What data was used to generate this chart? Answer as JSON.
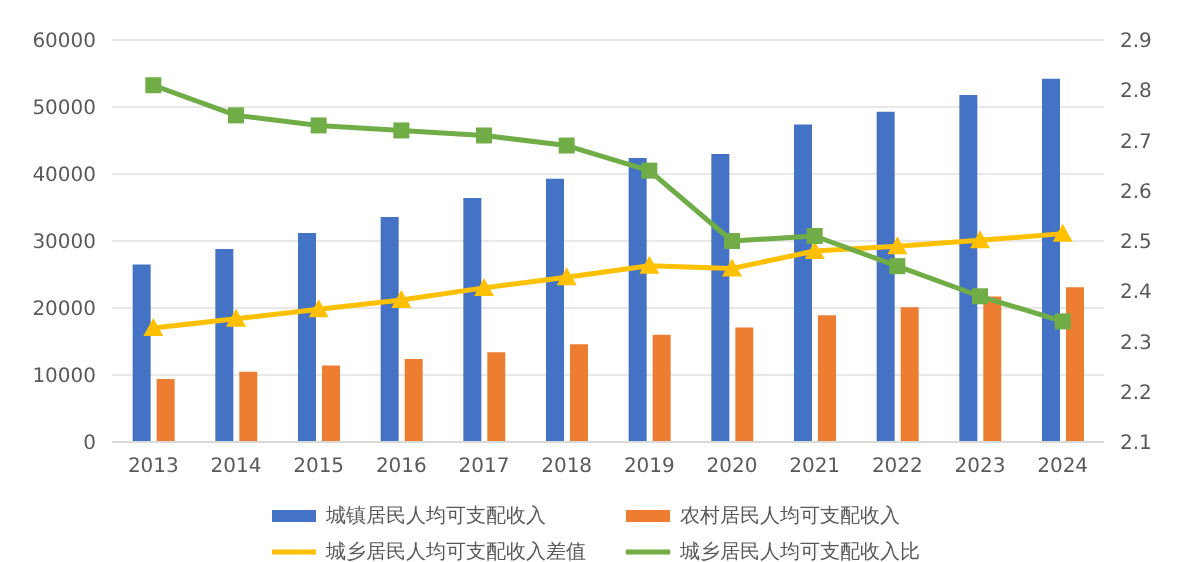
{
  "chart_data": {
    "type": "bar",
    "categories": [
      "2013",
      "2014",
      "2015",
      "2016",
      "2017",
      "2018",
      "2019",
      "2020",
      "2021",
      "2022",
      "2023",
      "2024"
    ],
    "series": [
      {
        "name": "城镇居民人均可支配收入",
        "color": "#4472c4",
        "values": [
          26500,
          28800,
          31200,
          33600,
          36400,
          39300,
          42400,
          43000,
          47400,
          49300,
          51800,
          54200
        ]
      },
      {
        "name": "农村居民人均可支配收入",
        "color": "#ed7d31",
        "values": [
          9400,
          10500,
          11400,
          12400,
          13400,
          14600,
          16000,
          17100,
          18900,
          20100,
          21700,
          23100
        ]
      },
      {
        "name": "城乡居民人均可支配收入差值",
        "color": "#ffc000",
        "type": "line",
        "marker": "triangle",
        "values": [
          17000,
          18400,
          19800,
          21200,
          23000,
          24600,
          26300,
          25900,
          28500,
          29200,
          30100,
          31100
        ]
      },
      {
        "name": "城乡居民人均可支配收入比",
        "color": "#70ad47",
        "type": "line",
        "marker": "square",
        "axis": "y2",
        "values": [
          2.81,
          2.75,
          2.73,
          2.72,
          2.71,
          2.69,
          2.64,
          2.5,
          2.51,
          2.45,
          2.39,
          2.34
        ]
      }
    ],
    "ylim": [
      0,
      60000
    ],
    "yticks": [
      0,
      10000,
      20000,
      30000,
      40000,
      50000,
      60000
    ],
    "y2lim": [
      2.1,
      2.9
    ],
    "y2ticks": [
      2.1,
      2.2,
      2.3,
      2.4,
      2.5,
      2.6,
      2.7,
      2.8,
      2.9
    ],
    "grid": "y",
    "legend": "bottom"
  }
}
